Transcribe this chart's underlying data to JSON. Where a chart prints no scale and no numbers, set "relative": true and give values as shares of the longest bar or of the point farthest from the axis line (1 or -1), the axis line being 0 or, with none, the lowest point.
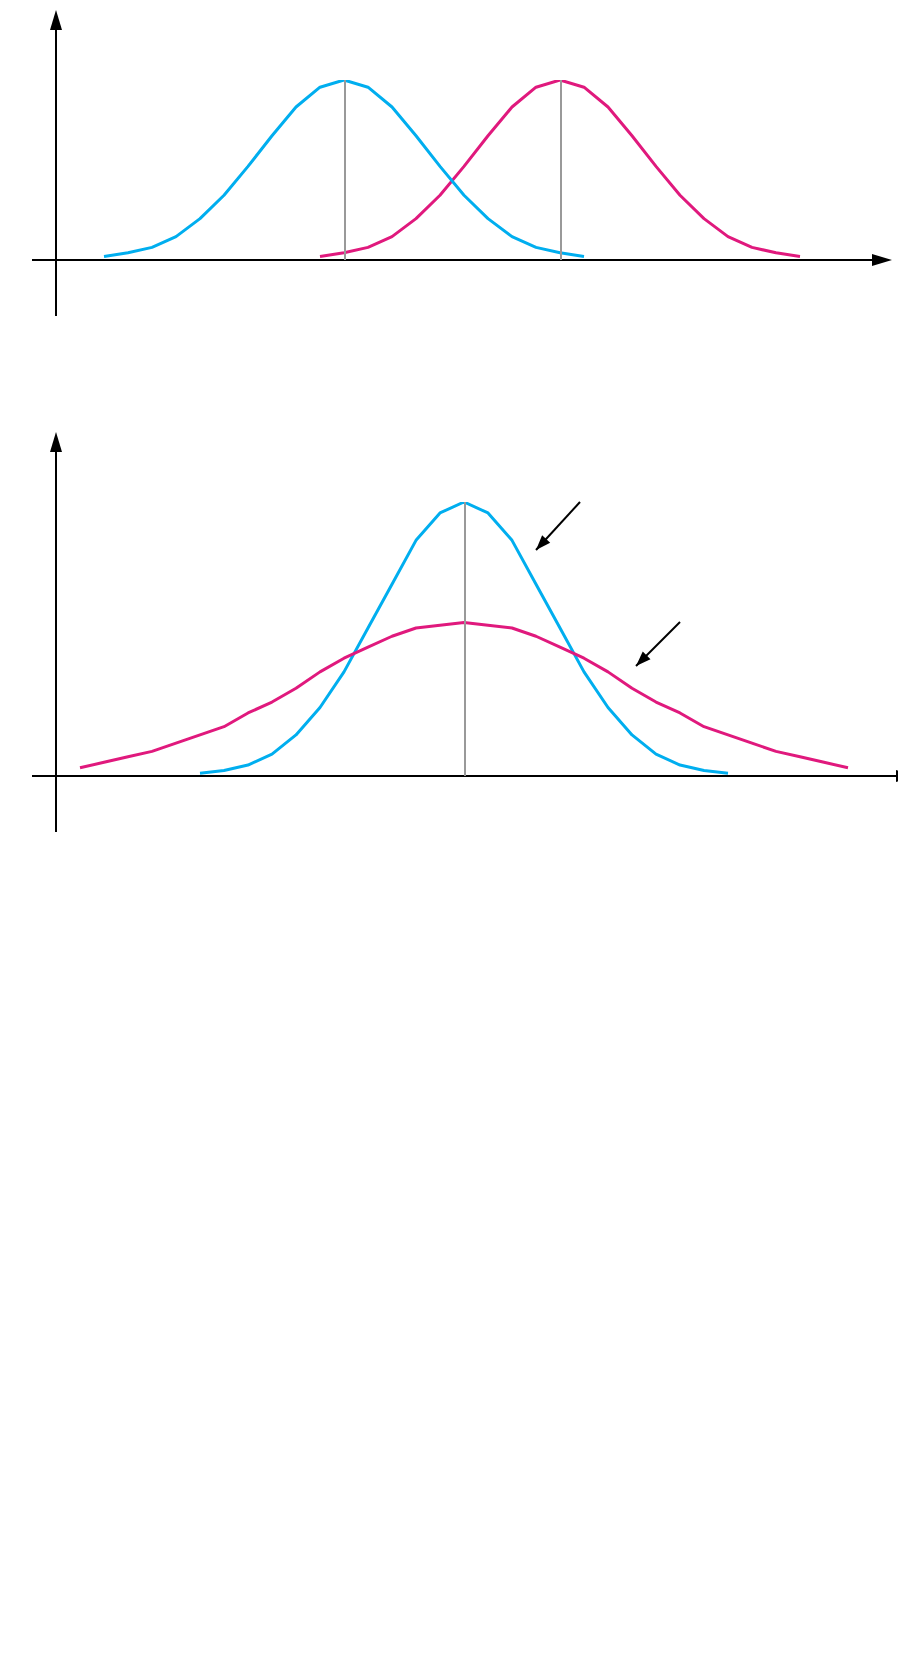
{
  "chart_data": [
    {
      "type": "line",
      "relative": true,
      "legend": false,
      "marker": "none",
      "categories": [
        null,
        null,
        null,
        null,
        null,
        null,
        null,
        null,
        null,
        null,
        null,
        null,
        null,
        null,
        null,
        null,
        null,
        null,
        null,
        null,
        null,
        null,
        null,
        null,
        null,
        null,
        null,
        null,
        null,
        null,
        null,
        null,
        null,
        null
      ],
      "series": [
        {
          "color": "#00aeef",
          "values": [
            null,
            0.02,
            0.04,
            0.07,
            0.13,
            0.23,
            0.36,
            0.52,
            0.69,
            0.85,
            0.96,
            1,
            0.96,
            0.85,
            0.69,
            0.52,
            0.36,
            0.23,
            0.13,
            0.07,
            0.04,
            0.02,
            null,
            null,
            null,
            null,
            null,
            null,
            null,
            null,
            null,
            null,
            null,
            null
          ]
        },
        {
          "color": "#e0197d",
          "values": [
            null,
            null,
            null,
            null,
            null,
            null,
            null,
            null,
            null,
            null,
            0.02,
            0.04,
            0.07,
            0.13,
            0.23,
            0.36,
            0.52,
            0.69,
            0.85,
            0.96,
            1,
            0.96,
            0.85,
            0.69,
            0.52,
            0.36,
            0.23,
            0.13,
            0.07,
            0.04,
            0.02,
            null,
            null,
            null
          ]
        }
      ]
    },
    {
      "type": "line",
      "relative": true,
      "legend": false,
      "marker": "none",
      "categories": [
        null,
        null,
        null,
        null,
        null,
        null,
        null,
        null,
        null,
        null,
        null,
        null,
        null,
        null,
        null,
        null,
        null,
        null,
        null,
        null,
        null,
        null,
        null,
        null,
        null,
        null,
        null,
        null,
        null,
        null,
        null,
        null,
        null,
        null,
        null
      ],
      "series": [
        {
          "color": "#e0197d",
          "values": [
            0.03,
            0.05,
            0.07,
            0.09,
            0.12,
            0.15,
            0.18,
            0.23,
            0.27,
            0.32,
            0.38,
            0.43,
            0.47,
            0.51,
            0.54,
            0.55,
            0.56,
            0.55,
            0.54,
            0.51,
            0.47,
            0.43,
            0.38,
            0.32,
            0.27,
            0.23,
            0.18,
            0.15,
            0.12,
            0.09,
            0.07,
            0.05,
            0.03,
            null,
            null
          ]
        },
        {
          "color": "#00aeef",
          "values": [
            null,
            null,
            null,
            null,
            null,
            0.01,
            0.02,
            0.04,
            0.08,
            0.15,
            0.25,
            0.38,
            0.54,
            0.7,
            0.86,
            0.96,
            1,
            0.96,
            0.86,
            0.7,
            0.54,
            0.38,
            0.25,
            0.15,
            0.08,
            0.04,
            0.02,
            0.01,
            null,
            null,
            null,
            null,
            null,
            null,
            null
          ]
        }
      ]
    }
  ]
}
